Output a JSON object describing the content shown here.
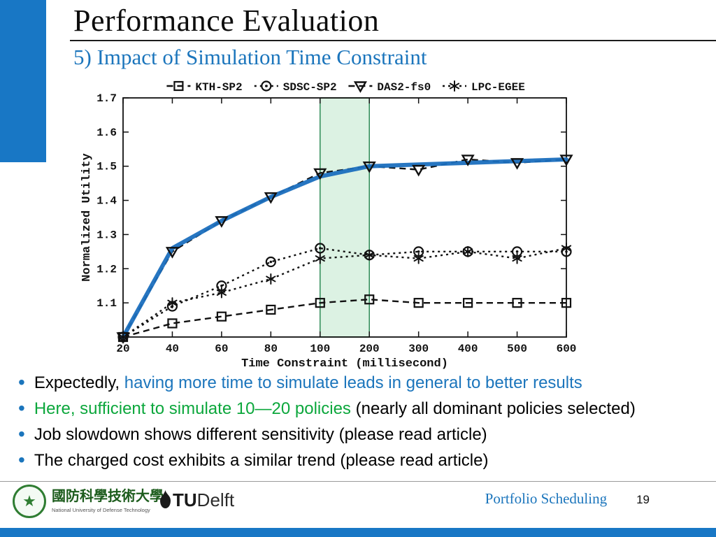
{
  "slide": {
    "title": "Performance Evaluation",
    "subtitle": "5) Impact of Simulation Time Constraint",
    "accent_blue": "#1877c5"
  },
  "chart_data": {
    "type": "line",
    "title": "",
    "xlabel": "Time Constraint (millisecond)",
    "ylabel": "Normalized Utility",
    "categories": [
      20,
      40,
      60,
      80,
      100,
      200,
      300,
      400,
      500,
      600
    ],
    "ylim": [
      1.0,
      1.7
    ],
    "yticks": [
      1.1,
      1.2,
      1.3,
      1.4,
      1.5,
      1.6,
      1.7
    ],
    "grid": false,
    "legend_position": "top",
    "highlight_band": {
      "x_from": 100,
      "x_to": 200,
      "fill": "#bfe8cc",
      "stroke": "#2e8b57"
    },
    "series": [
      {
        "name": "KTH-SP2",
        "marker": "square",
        "dash": "9 6",
        "color": "#111111",
        "values": [
          1.0,
          1.04,
          1.06,
          1.08,
          1.1,
          1.11,
          1.1,
          1.1,
          1.1,
          1.1
        ]
      },
      {
        "name": "SDSC-SP2",
        "marker": "circle-dot",
        "dash": "3 5",
        "color": "#111111",
        "values": [
          1.0,
          1.09,
          1.15,
          1.22,
          1.26,
          1.24,
          1.25,
          1.25,
          1.25,
          1.25
        ]
      },
      {
        "name": "DAS2-fs0",
        "marker": "triangle-down",
        "dash": "9 6",
        "color": "#111111",
        "values": [
          1.0,
          1.25,
          1.34,
          1.41,
          1.48,
          1.5,
          1.49,
          1.52,
          1.51,
          1.52
        ]
      },
      {
        "name": "LPC-EGEE",
        "marker": "star",
        "dash": "3 5",
        "color": "#111111",
        "values": [
          1.0,
          1.1,
          1.13,
          1.17,
          1.23,
          1.24,
          1.23,
          1.25,
          1.23,
          1.26
        ]
      }
    ],
    "trend_overlay": {
      "series": "DAS2-fs0",
      "color": "#1b6fbe",
      "width": 6,
      "values": [
        1.0,
        1.26,
        1.34,
        1.41,
        1.47,
        1.5,
        1.505,
        1.51,
        1.515,
        1.52
      ]
    }
  },
  "bullets": [
    {
      "parts": [
        {
          "text": "Expectedly, ",
          "color": "#000000"
        },
        {
          "text": "having more time to simulate leads in general to better results",
          "color": "#1b75bc"
        }
      ]
    },
    {
      "parts": [
        {
          "text": "Here, sufficient to simulate 10—20 policies ",
          "color": "#0ca73c"
        },
        {
          "text": "(nearly all dominant policies selected)",
          "color": "#000000"
        }
      ]
    },
    {
      "parts": [
        {
          "text": "Job slowdown shows different sensitivity (please read article)",
          "color": "#000000"
        }
      ]
    },
    {
      "parts": [
        {
          "text": "The charged cost exhibits a similar trend (please read article)",
          "color": "#000000"
        }
      ]
    }
  ],
  "footer": {
    "nudt_cn": "國防科學技術大學",
    "nudt_en": "National University of Defense Technology",
    "nudt_star": "★",
    "tu": "TU",
    "delft": "Delft",
    "label": "Portfolio Scheduling",
    "page": "19"
  }
}
